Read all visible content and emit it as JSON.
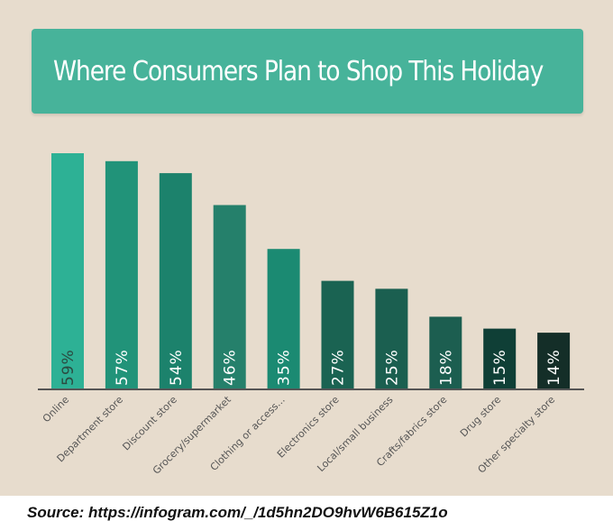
{
  "header": {
    "title": "Where Consumers Plan to Shop This Holiday"
  },
  "footer": {
    "source": "Source: https://infogram.com/_/1d5hn2DO9hvW6B615Z1o"
  },
  "colors": {
    "background": "#e7dccd",
    "title_box": "#47b39a",
    "axis": "#555555",
    "tick_label": "#555555",
    "value_label_light": "#ffffff",
    "value_label_dark": "#2b4a40"
  },
  "chart_data": {
    "type": "bar",
    "title": "Where Consumers Plan to Shop This Holiday",
    "xlabel": "",
    "ylabel": "",
    "ylim": [
      0,
      60
    ],
    "grid": false,
    "legend": "none",
    "categories": [
      "Online",
      "Department store",
      "Discount store",
      "Grocery/supermarket",
      "Clothing or access...",
      "Electronics store",
      "Local/small business",
      "Crafts/fabrics store",
      "Drug store",
      "Other specialty store"
    ],
    "values": [
      59,
      57,
      54,
      46,
      35,
      27,
      25,
      18,
      15,
      14
    ],
    "value_labels": [
      "59%",
      "57%",
      "54%",
      "46%",
      "35%",
      "27%",
      "25%",
      "18%",
      "15%",
      "14%"
    ],
    "bar_colors": [
      "#2db195",
      "#219379",
      "#1c826c",
      "#25806b",
      "#1b8a72",
      "#1a6352",
      "#1b5f50",
      "#1c5e50",
      "#0f3f36",
      "#142e28"
    ]
  }
}
